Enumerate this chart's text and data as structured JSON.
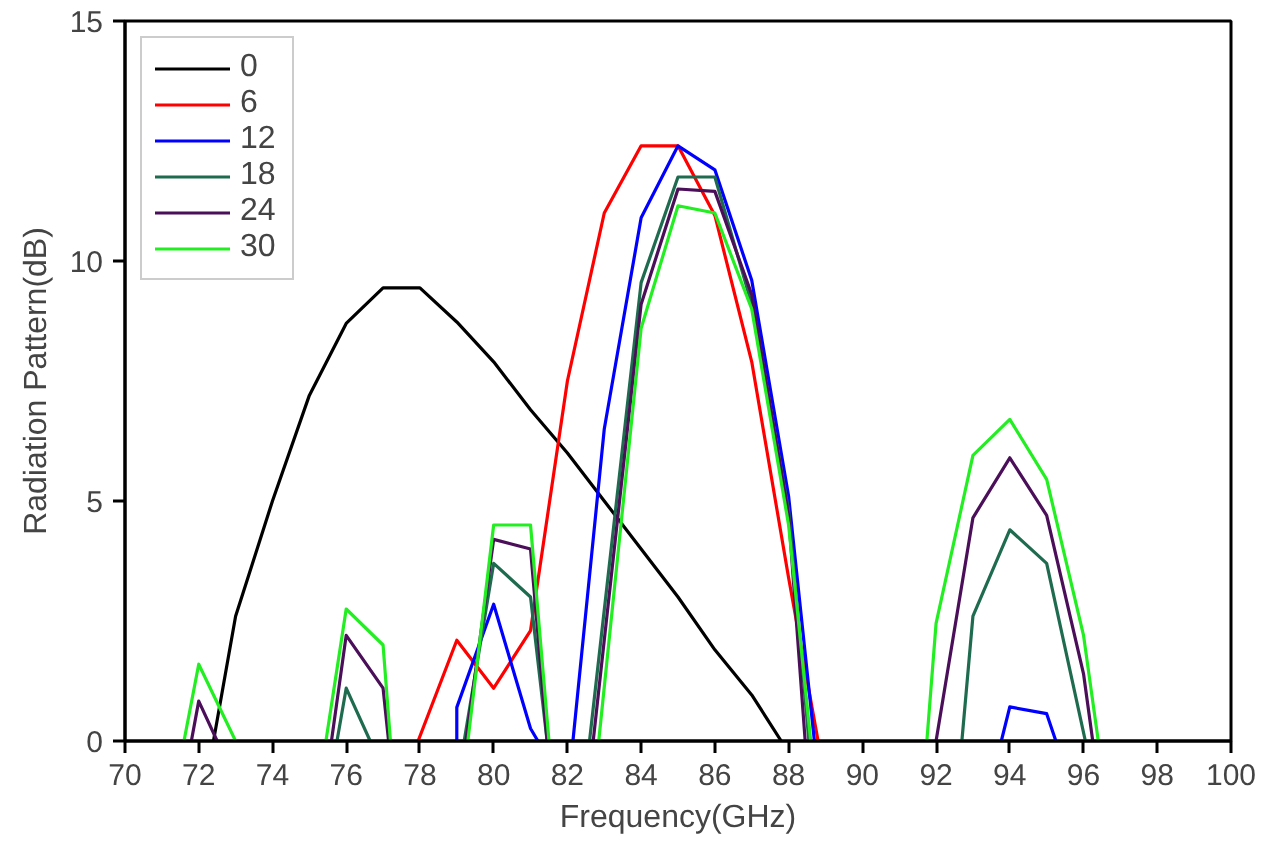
{
  "chart_data": {
    "type": "line",
    "xlabel": "Frequency(GHz)",
    "ylabel": "Radiation Pattern(dB)",
    "xlim": [
      70,
      100
    ],
    "ylim": [
      0,
      15
    ],
    "xticks": [
      70,
      72,
      74,
      76,
      78,
      80,
      82,
      84,
      86,
      88,
      90,
      92,
      94,
      96,
      98,
      100
    ],
    "yticks": [
      0,
      5,
      10,
      15
    ],
    "legend": "top left",
    "grid": false,
    "marker": "none",
    "line_style": "solid",
    "series": [
      {
        "name": "0",
        "color": "#000000",
        "x": [
          72.4,
          73,
          74,
          75,
          76,
          77,
          78,
          79,
          80,
          81,
          82,
          83,
          84,
          85,
          86,
          87,
          87.8
        ],
        "values": [
          0,
          2.6,
          5.0,
          7.2,
          8.7,
          9.44,
          9.44,
          8.73,
          7.9,
          6.9,
          6.0,
          5.0,
          4.0,
          3.0,
          1.9,
          0.96,
          0
        ]
      },
      {
        "name": "6",
        "color": "#ff0000",
        "x": [
          77.95,
          79,
          80,
          81,
          82,
          83,
          84,
          85,
          86,
          87,
          88,
          88.8
        ],
        "values": [
          0,
          2.1,
          1.1,
          2.3,
          7.5,
          11.0,
          12.4,
          12.4,
          10.95,
          7.9,
          3.4,
          0
        ]
      },
      {
        "name": "12",
        "color": "#0000ff",
        "x": [
          79,
          79,
          80,
          81,
          81.2,
          null,
          82.15,
          83,
          84,
          85,
          86,
          87,
          88,
          88.7,
          null,
          93.77,
          94,
          95,
          95.25
        ],
        "values": [
          0,
          0.7,
          2.85,
          0.26,
          0,
          null,
          0,
          6.5,
          10.9,
          12.4,
          11.9,
          9.6,
          5.1,
          0,
          null,
          0,
          0.71,
          0.57,
          0
        ]
      },
      {
        "name": "18",
        "color": "#1f6b4f",
        "x": [
          75.75,
          76,
          76.65,
          null,
          79.2,
          80,
          81,
          81.45,
          null,
          82.6,
          84,
          85,
          86,
          87,
          88,
          88.55,
          null,
          92.7,
          93,
          94,
          95,
          96.05
        ],
        "values": [
          0,
          1.1,
          0,
          null,
          0,
          3.7,
          3.0,
          0,
          null,
          0,
          9.55,
          11.75,
          11.75,
          9.1,
          4.8,
          0,
          null,
          0,
          2.6,
          4.4,
          3.7,
          0
        ]
      },
      {
        "name": "24",
        "color": "#4b0f5a",
        "x": [
          71.8,
          72,
          72.5,
          null,
          75.6,
          76,
          77,
          77.15,
          null,
          79.25,
          80,
          81,
          81.45,
          null,
          82.7,
          84,
          85,
          86,
          87,
          88,
          88.45,
          null,
          92,
          93,
          94,
          95,
          96,
          96.25
        ],
        "values": [
          0,
          0.83,
          0,
          null,
          0,
          2.2,
          1.1,
          0,
          null,
          0,
          4.2,
          4.0,
          0,
          null,
          0,
          9.1,
          11.5,
          11.45,
          9.3,
          4.7,
          0,
          null,
          0,
          4.65,
          5.9,
          4.7,
          1.4,
          0
        ]
      },
      {
        "name": "30",
        "color": "#22ee22",
        "x": [
          71.6,
          72,
          73,
          null,
          75.45,
          76,
          77,
          77.2,
          null,
          79.3,
          80,
          81,
          81.5,
          null,
          82.85,
          84,
          85,
          86,
          87,
          88,
          88.6,
          null,
          91.75,
          92,
          93,
          94,
          95,
          96,
          96.4
        ],
        "values": [
          0,
          1.6,
          0,
          null,
          0,
          2.75,
          2.0,
          0,
          null,
          0,
          4.5,
          4.5,
          0,
          null,
          0,
          8.6,
          11.15,
          11.0,
          9.0,
          4.5,
          0,
          null,
          0,
          2.45,
          5.95,
          6.7,
          5.45,
          2.2,
          0
        ]
      }
    ]
  }
}
